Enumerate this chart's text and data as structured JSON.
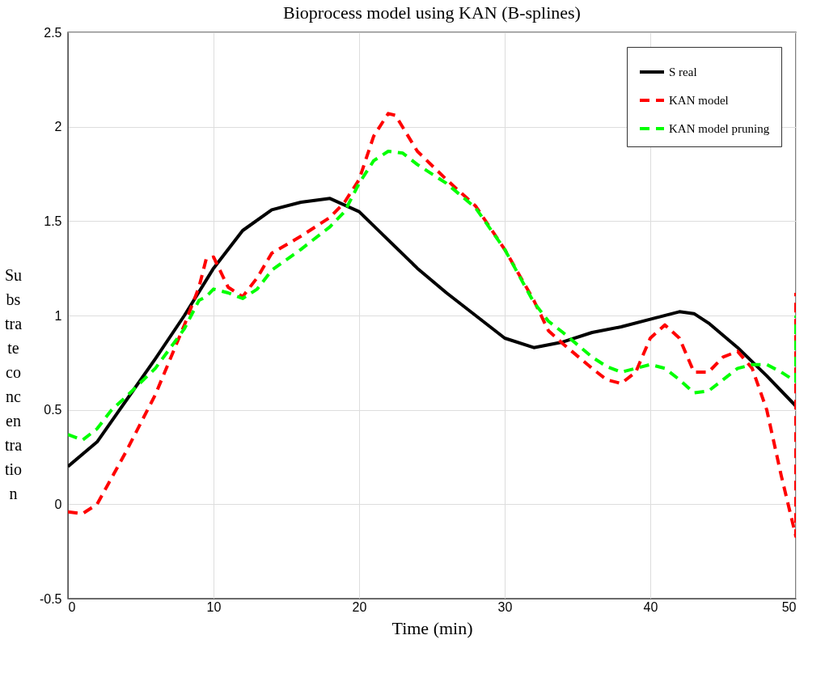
{
  "chart_data": {
    "type": "line",
    "title": "Bioprocess model using KAN (B-splines)",
    "xlabel": "Time (min)",
    "ylabel": "Su\nbs\ntra\nte\nco\nnc\nen\ntra\ntio\nn",
    "xlim": [
      0,
      50
    ],
    "xticks": [
      0,
      10,
      20,
      30,
      40,
      50
    ],
    "ylim": [
      -0.5,
      2.5
    ],
    "yticks": [
      -0.5,
      0,
      0.5,
      1,
      1.5,
      2,
      2.5
    ],
    "grid": true,
    "legend": "top right",
    "series": [
      {
        "name": "S real",
        "color": "#000000",
        "line_style": "solid",
        "x": [
          0,
          2,
          4,
          6,
          8,
          10,
          12,
          14,
          16,
          18,
          20,
          22,
          24,
          26,
          28,
          30,
          32,
          34,
          36,
          38,
          40,
          42,
          43,
          44,
          46,
          48,
          50
        ],
        "values": [
          0.2,
          0.33,
          0.55,
          0.77,
          1.0,
          1.25,
          1.45,
          1.56,
          1.6,
          1.62,
          1.55,
          1.4,
          1.25,
          1.12,
          1.0,
          0.88,
          0.83,
          0.86,
          0.91,
          0.94,
          0.98,
          1.02,
          1.01,
          0.96,
          0.83,
          0.68,
          0.52
        ]
      },
      {
        "name": "KAN model",
        "color": "#ff0000",
        "line_style": "dashed",
        "x": [
          0,
          1,
          2,
          4,
          6,
          8,
          9,
          9.5,
          10,
          11,
          12,
          13,
          14,
          16,
          18,
          19,
          20,
          21,
          22,
          22.5,
          24,
          26,
          28,
          30,
          32,
          33,
          34,
          36,
          37,
          38,
          39,
          40,
          41,
          42,
          43,
          44,
          45,
          46,
          47,
          48,
          49,
          50,
          50
        ],
        "values": [
          -0.04,
          -0.05,
          0.0,
          0.28,
          0.58,
          0.95,
          1.15,
          1.3,
          1.31,
          1.15,
          1.1,
          1.2,
          1.33,
          1.42,
          1.52,
          1.6,
          1.72,
          1.95,
          2.07,
          2.06,
          1.87,
          1.72,
          1.58,
          1.35,
          1.08,
          0.92,
          0.85,
          0.72,
          0.66,
          0.64,
          0.7,
          0.88,
          0.95,
          0.88,
          0.7,
          0.7,
          0.78,
          0.81,
          0.72,
          0.5,
          0.15,
          -0.17,
          1.12
        ]
      },
      {
        "name": "KAN model pruning",
        "color": "#00ff00",
        "line_style": "dashed",
        "x": [
          0,
          1,
          2,
          3,
          4,
          6,
          8,
          9,
          9.5,
          10,
          11,
          12,
          13,
          14,
          16,
          18,
          19,
          20,
          21,
          22,
          23,
          24,
          26,
          28,
          30,
          32,
          33,
          34,
          36,
          37,
          38,
          39,
          40,
          41,
          42,
          43,
          44,
          45,
          46,
          47,
          48,
          49,
          50,
          50
        ],
        "values": [
          0.37,
          0.34,
          0.4,
          0.5,
          0.57,
          0.72,
          0.93,
          1.08,
          1.1,
          1.14,
          1.12,
          1.09,
          1.14,
          1.24,
          1.35,
          1.47,
          1.55,
          1.7,
          1.82,
          1.87,
          1.86,
          1.8,
          1.7,
          1.57,
          1.35,
          1.07,
          0.97,
          0.91,
          0.78,
          0.73,
          0.7,
          0.72,
          0.74,
          0.72,
          0.66,
          0.59,
          0.6,
          0.66,
          0.72,
          0.74,
          0.74,
          0.7,
          0.65,
          1.0
        ]
      }
    ]
  }
}
